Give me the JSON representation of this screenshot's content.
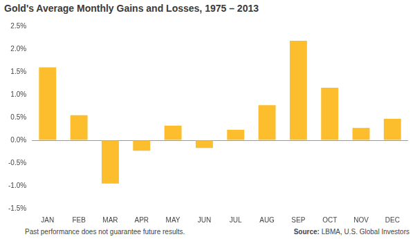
{
  "chart_data": {
    "type": "bar",
    "title": "Gold's Average Monthly Gains and Losses, 1975 – 2013",
    "note": "Past performance does not guarantee future results.",
    "source": "Source: LBMA, U.S. Global Investors",
    "categories": [
      "JAN",
      "FEB",
      "MAR",
      "APR",
      "MAY",
      "JUN",
      "JUL",
      "AUG",
      "SEP",
      "OCT",
      "NOV",
      "DEC"
    ],
    "values": [
      1.6,
      0.55,
      -0.95,
      -0.23,
      0.32,
      -0.17,
      0.23,
      0.77,
      2.18,
      1.15,
      0.27,
      0.47
    ],
    "color": "#fcbe2c",
    "ylim": [
      -1.5,
      2.5
    ],
    "yticks": [
      {
        "value": -1.5,
        "label": "-1.5%"
      },
      {
        "value": -1.0,
        "label": "-1.0%"
      },
      {
        "value": -0.5,
        "label": "-0.5%"
      },
      {
        "value": 0.0,
        "label": "0.0%"
      },
      {
        "value": 0.5,
        "label": "0.5%"
      },
      {
        "value": 1.0,
        "label": "1.0%"
      },
      {
        "value": 1.5,
        "label": "1.5%"
      },
      {
        "value": 2.0,
        "label": "2.0%"
      },
      {
        "value": 2.5,
        "label": "2.5%"
      }
    ],
    "grid": false
  }
}
